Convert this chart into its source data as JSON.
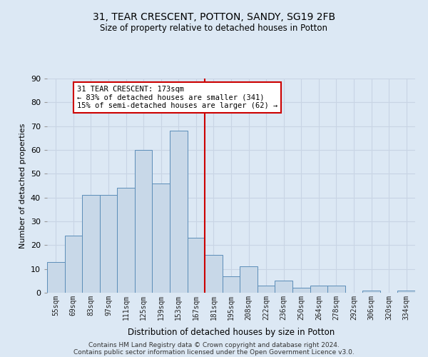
{
  "title1": "31, TEAR CRESCENT, POTTON, SANDY, SG19 2FB",
  "title2": "Size of property relative to detached houses in Potton",
  "xlabel": "Distribution of detached houses by size in Potton",
  "ylabel": "Number of detached properties",
  "bar_labels": [
    "55sqm",
    "69sqm",
    "83sqm",
    "97sqm",
    "111sqm",
    "125sqm",
    "139sqm",
    "153sqm",
    "167sqm",
    "181sqm",
    "195sqm",
    "208sqm",
    "222sqm",
    "236sqm",
    "250sqm",
    "264sqm",
    "278sqm",
    "292sqm",
    "306sqm",
    "320sqm",
    "334sqm"
  ],
  "bar_values": [
    13,
    24,
    41,
    41,
    44,
    60,
    46,
    68,
    23,
    16,
    7,
    11,
    3,
    5,
    2,
    3,
    3,
    0,
    1,
    0,
    1
  ],
  "bar_color": "#c8d8e8",
  "bar_edge_color": "#5b8db8",
  "vline_x": 8.5,
  "vline_color": "#cc0000",
  "annotation_text": "31 TEAR CRESCENT: 173sqm\n← 83% of detached houses are smaller (341)\n15% of semi-detached houses are larger (62) →",
  "annotation_box_color": "#ffffff",
  "annotation_box_edge_color": "#cc0000",
  "ylim": [
    0,
    90
  ],
  "yticks": [
    0,
    10,
    20,
    30,
    40,
    50,
    60,
    70,
    80,
    90
  ],
  "grid_color": "#c8d4e4",
  "bg_color": "#dce8f4",
  "footnote1": "Contains HM Land Registry data © Crown copyright and database right 2024.",
  "footnote2": "Contains public sector information licensed under the Open Government Licence v3.0."
}
